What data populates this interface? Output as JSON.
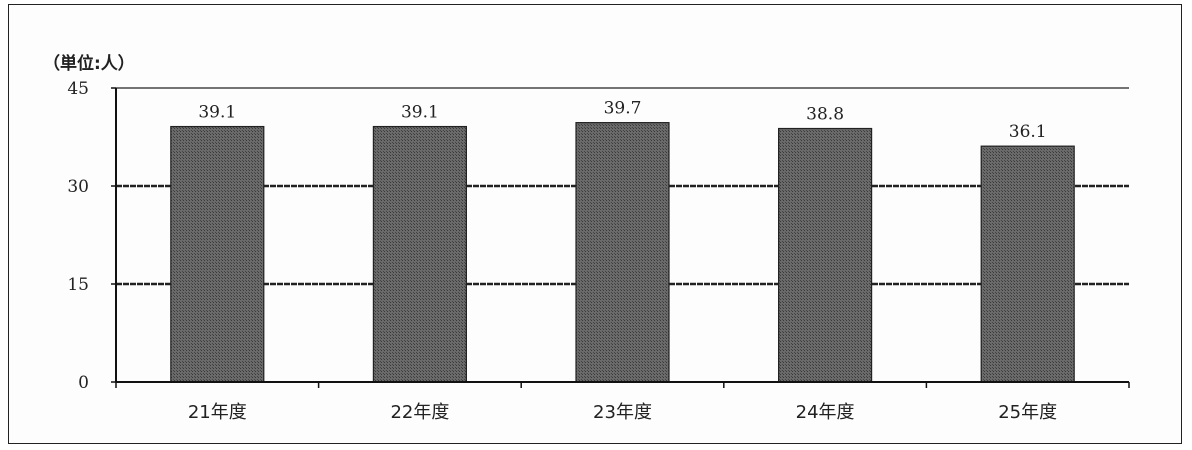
{
  "chart_data": {
    "type": "bar",
    "unit_label": "（単位:人）",
    "categories": [
      "21年度",
      "22年度",
      "23年度",
      "24年度",
      "25年度"
    ],
    "values": [
      39.1,
      39.1,
      39.7,
      38.8,
      36.1
    ],
    "data_labels": [
      "39.1",
      "39.1",
      "39.7",
      "38.8",
      "36.1"
    ],
    "yticks": [
      0,
      15,
      30,
      45
    ],
    "ylim": [
      0,
      45
    ],
    "grid": true,
    "title": "",
    "xlabel": "",
    "ylabel": "",
    "bar_color": "#555555",
    "grid_color": "#222222"
  }
}
